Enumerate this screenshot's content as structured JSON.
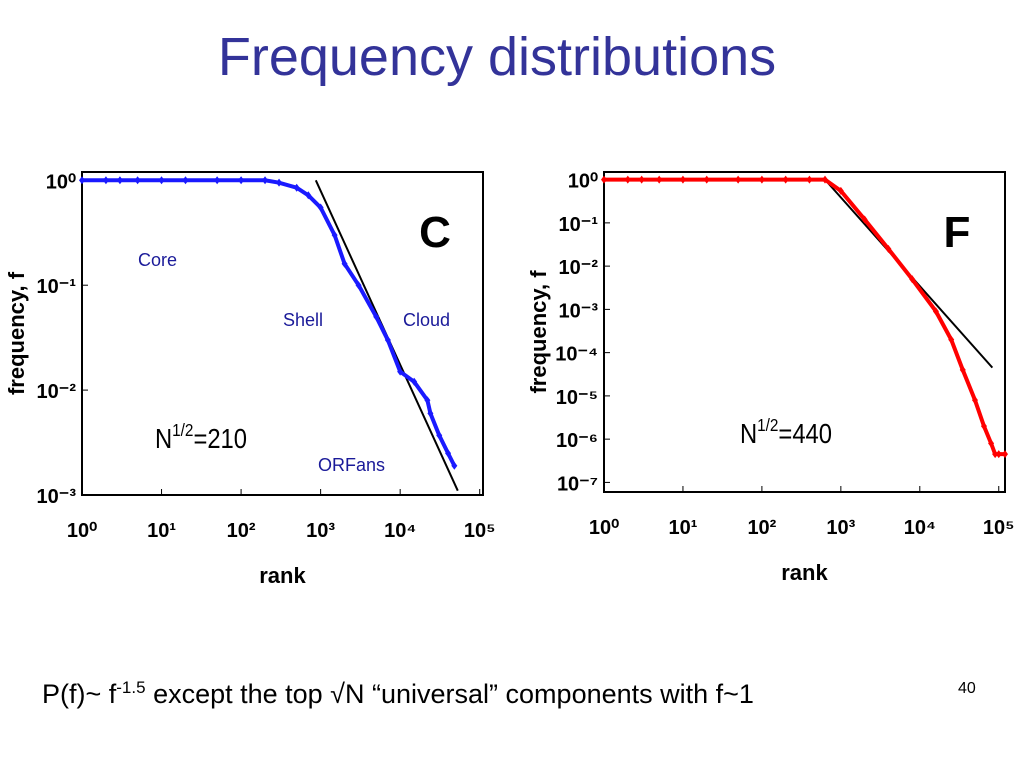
{
  "title": "Frequency distributions",
  "caption": {
    "start": "P(f)~ f",
    "sup": "-1.5",
    "rest": " except the top √N “universal” components with f~1"
  },
  "page_number": "40",
  "chart_data": [
    {
      "type": "scatter",
      "log_x": true,
      "log_y": true,
      "xlabel": "rank",
      "ylabel": "frequency, f",
      "panel": "C",
      "xlim": [
        1,
        110000
      ],
      "ylim": [
        0.001,
        1.2
      ],
      "xticks": [
        {
          "value": 1,
          "label": "10⁰"
        },
        {
          "value": 10,
          "label": "10¹"
        },
        {
          "value": 100,
          "label": "10²"
        },
        {
          "value": 1000,
          "label": "10³"
        },
        {
          "value": 10000,
          "label": "10⁴"
        },
        {
          "value": 100000,
          "label": "10⁵"
        }
      ],
      "yticks": [
        {
          "value": 1,
          "label": "10⁰"
        },
        {
          "value": 0.1,
          "label": "10⁻¹"
        },
        {
          "value": 0.01,
          "label": "10⁻²"
        },
        {
          "value": 0.001,
          "label": "10⁻³"
        }
      ],
      "series": [
        {
          "name": "C",
          "color": "#1a1aff",
          "x": [
            1,
            2,
            3,
            5,
            10,
            20,
            50,
            100,
            200,
            300,
            500,
            700,
            1000,
            1500,
            2000,
            3000,
            5000,
            7000,
            10000,
            15000,
            22000,
            24000,
            31000,
            40000,
            48000
          ],
          "values": [
            1,
            1,
            1,
            1,
            1,
            1,
            1,
            1,
            1,
            0.95,
            0.85,
            0.72,
            0.55,
            0.3,
            0.16,
            0.1,
            0.05,
            0.03,
            0.015,
            0.012,
            0.008,
            0.006,
            0.0037,
            0.0025,
            0.0019
          ]
        }
      ],
      "fit_line": {
        "color": "#000000",
        "x": [
          870,
          53000
        ],
        "values": [
          1,
          0.0011
        ]
      },
      "annotations": {
        "core": "Core",
        "shell": "Shell",
        "cloud": "Cloud",
        "orfans": "ORFans",
        "n": {
          "base": "N",
          "sup": "1/2",
          "rest": "=210"
        }
      }
    },
    {
      "type": "scatter",
      "log_x": true,
      "log_y": true,
      "xlabel": "rank",
      "ylabel": "frequency, f",
      "panel": "F",
      "xlim": [
        1,
        120000
      ],
      "ylim": [
        6e-08,
        1.5
      ],
      "xticks": [
        {
          "value": 1,
          "label": "10⁰"
        },
        {
          "value": 10,
          "label": "10¹"
        },
        {
          "value": 100,
          "label": "10²"
        },
        {
          "value": 1000,
          "label": "10³"
        },
        {
          "value": 10000,
          "label": "10⁴"
        },
        {
          "value": 100000,
          "label": "10⁵"
        }
      ],
      "yticks": [
        {
          "value": 1,
          "label": "10⁰"
        },
        {
          "value": 0.1,
          "label": "10⁻¹"
        },
        {
          "value": 0.01,
          "label": "10⁻²"
        },
        {
          "value": 0.001,
          "label": "10⁻³"
        },
        {
          "value": 0.0001,
          "label": "10⁻⁴"
        },
        {
          "value": 1e-05,
          "label": "10⁻⁵"
        },
        {
          "value": 1e-06,
          "label": "10⁻⁶"
        },
        {
          "value": 1e-07,
          "label": "10⁻⁷"
        }
      ],
      "series": [
        {
          "name": "F",
          "color": "#ff0000",
          "x": [
            1,
            2,
            3,
            5,
            10,
            20,
            50,
            100,
            200,
            400,
            630,
            1000,
            2000,
            4000,
            8000,
            16000,
            25000,
            35000,
            50000,
            65000,
            80000,
            90000,
            100000,
            120000
          ],
          "values": [
            1,
            1,
            1,
            1,
            1,
            1,
            1,
            1,
            1,
            1,
            1,
            0.55,
            0.12,
            0.025,
            0.005,
            0.0009,
            0.0002,
            4e-05,
            8e-06,
            2e-06,
            8e-07,
            4.5e-07,
            4.5e-07,
            4.5e-07
          ]
        }
      ],
      "fit_line": {
        "color": "#000000",
        "x": [
          630,
          83000
        ],
        "values": [
          1,
          4.5e-05
        ]
      },
      "annotations": {
        "n": {
          "base": "N",
          "sup": "1/2",
          "rest": "=440"
        }
      }
    }
  ]
}
